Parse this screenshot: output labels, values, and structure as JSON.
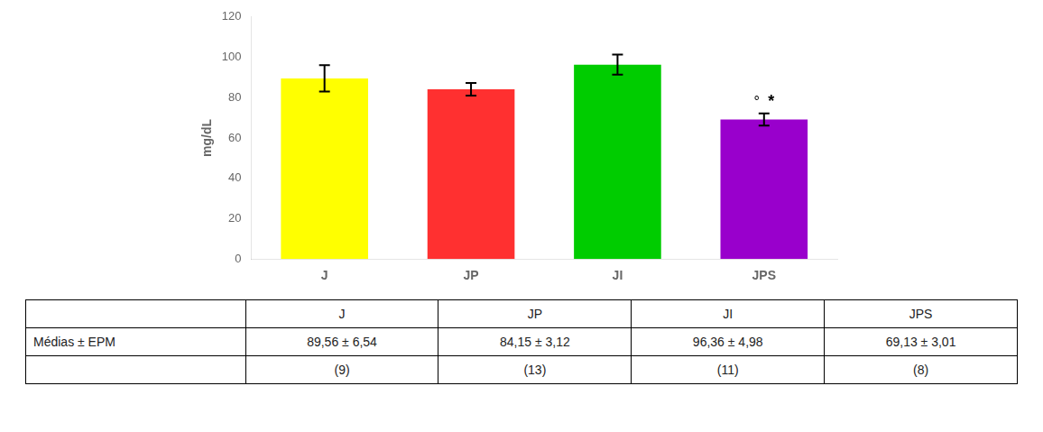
{
  "chart_data": {
    "type": "bar",
    "categories": [
      "J",
      "JP",
      "JI",
      "JPS"
    ],
    "values": [
      89.56,
      84.15,
      96.36,
      69.13
    ],
    "errors": [
      6.54,
      3.12,
      4.98,
      3.01
    ],
    "colors": [
      "#FFFF00",
      "#FF3030",
      "#00CC00",
      "#9900CC"
    ],
    "ylabel": "mg/dL",
    "ylim": [
      0,
      120
    ],
    "yticks": [
      0,
      20,
      40,
      60,
      80,
      100,
      120
    ],
    "grid": false,
    "annotations": [
      {
        "category": "JPS",
        "text": "°"
      },
      {
        "category": "JPS",
        "text": "*"
      }
    ],
    "table": {
      "header": [
        null,
        "J",
        "JP",
        "JI",
        "JPS"
      ],
      "rows": [
        [
          "Médias ± EPM",
          "89,56 ± 6,54",
          "84,15 ± 3,12",
          "96,36 ± 4,98",
          "69,13 ± 3,01"
        ],
        [
          null,
          "(9)",
          "(13)",
          "(11)",
          "(8)"
        ]
      ]
    }
  }
}
